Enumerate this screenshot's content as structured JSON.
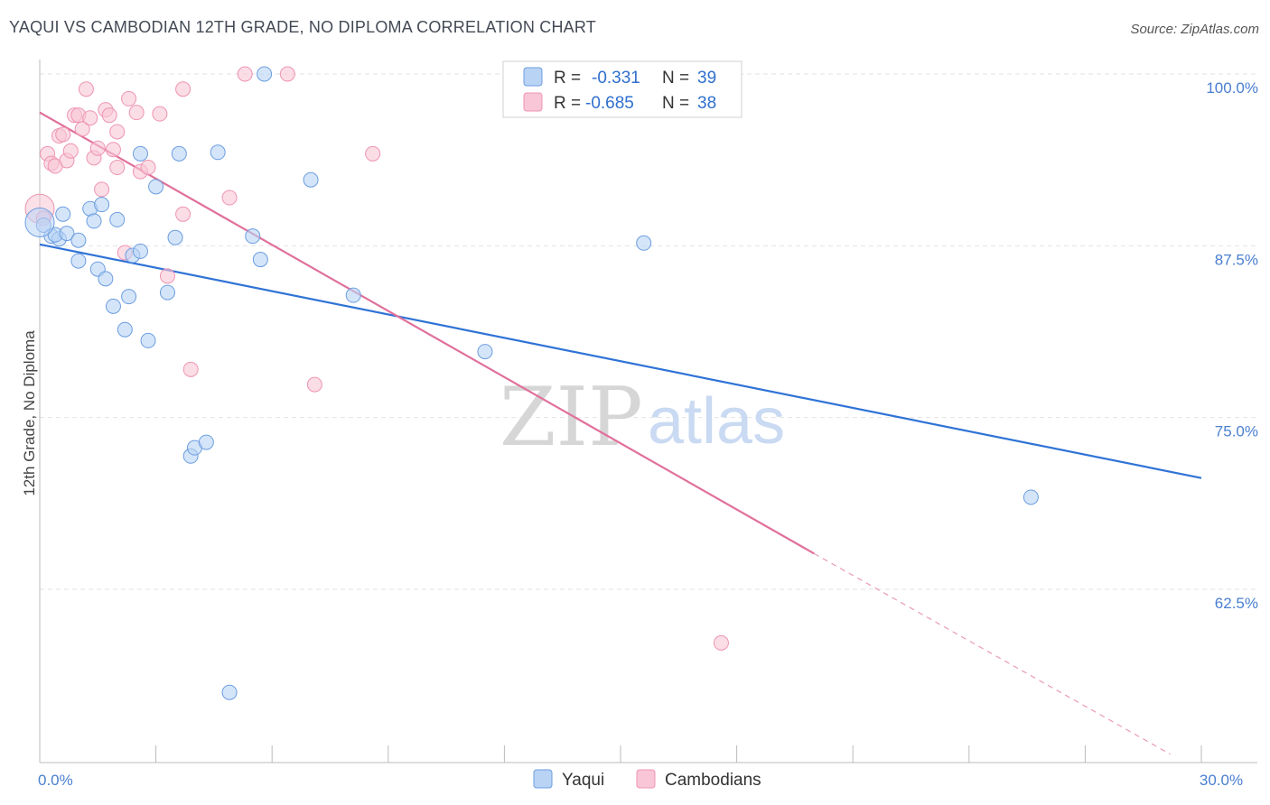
{
  "title": "YAQUI VS CAMBODIAN 12TH GRADE, NO DIPLOMA CORRELATION CHART",
  "source": "Source: ZipAtlas.com",
  "watermark": {
    "zip": "ZIP",
    "atlas": "atlas"
  },
  "colors": {
    "yaqui_fill": "#b9d3f5",
    "yaqui_stroke": "#6b9de0",
    "yaqui_line": "#2f73d6",
    "camb_fill": "#f8c6d6",
    "camb_stroke": "#ee94b2",
    "camb_line": "#e0709b",
    "grid": "#e2e2e2",
    "tick_label": "#4a7fd0"
  },
  "legend": {
    "rows": [
      {
        "r_label": "R =",
        "r_value": "-0.331",
        "n_label": "N =",
        "n_value": "39",
        "series": "yaqui"
      },
      {
        "r_label": "R =",
        "r_value": "-0.685",
        "n_label": "N =",
        "n_value": "38",
        "series": "camb"
      }
    ]
  },
  "bottom_legend": [
    "Yaqui",
    "Cambodians"
  ],
  "chart_data": {
    "type": "scatter",
    "title": "YAQUI VS CAMBODIAN 12TH GRADE, NO DIPLOMA CORRELATION CHART",
    "xlabel": "",
    "ylabel": "12th Grade, No Diploma",
    "xlim": [
      0,
      30
    ],
    "ylim": [
      50.5,
      101
    ],
    "x_tick_labels": [
      {
        "value": 0,
        "label": "0.0%"
      },
      {
        "value": 30,
        "label": "30.0%"
      }
    ],
    "x_minor_ticks": [
      0,
      3,
      6,
      9,
      12,
      15,
      18,
      21,
      24,
      27,
      30
    ],
    "y_ticks": [
      {
        "value": 100,
        "label": "100.0%"
      },
      {
        "value": 87.5,
        "label": "87.5%"
      },
      {
        "value": 75,
        "label": "75.0%"
      },
      {
        "value": 62.5,
        "label": "62.5%"
      }
    ],
    "grid": true,
    "legend_position": "top-center",
    "series": [
      {
        "name": "Yaqui",
        "key": "yaqui",
        "points": [
          [
            0.1,
            89.0
          ],
          [
            0.3,
            88.2
          ],
          [
            0.5,
            88.0
          ],
          [
            0.4,
            88.3
          ],
          [
            0.6,
            89.8
          ],
          [
            0.7,
            88.4
          ],
          [
            1.0,
            87.9
          ],
          [
            1.0,
            86.4
          ],
          [
            1.3,
            90.2
          ],
          [
            1.4,
            89.3
          ],
          [
            1.6,
            90.5
          ],
          [
            1.5,
            85.8
          ],
          [
            1.7,
            85.1
          ],
          [
            1.9,
            83.1
          ],
          [
            2.0,
            89.4
          ],
          [
            2.2,
            81.4
          ],
          [
            2.3,
            83.8
          ],
          [
            2.4,
            86.8
          ],
          [
            2.6,
            87.1
          ],
          [
            2.6,
            94.2
          ],
          [
            2.8,
            80.6
          ],
          [
            3.0,
            91.8
          ],
          [
            3.3,
            84.1
          ],
          [
            3.5,
            88.1
          ],
          [
            3.6,
            94.2
          ],
          [
            3.9,
            72.2
          ],
          [
            4.0,
            72.8
          ],
          [
            4.3,
            73.2
          ],
          [
            4.6,
            94.3
          ],
          [
            4.9,
            55.0
          ],
          [
            5.5,
            88.2
          ],
          [
            5.7,
            86.5
          ],
          [
            5.8,
            100.0
          ],
          [
            7.0,
            92.3
          ],
          [
            8.1,
            83.9
          ],
          [
            11.5,
            79.8
          ],
          [
            15.6,
            87.7
          ],
          [
            25.6,
            69.2
          ],
          [
            0.0,
            89.2
          ]
        ],
        "trend": {
          "x": [
            0,
            30
          ],
          "y": [
            87.6,
            70.6
          ]
        }
      },
      {
        "name": "Cambodians",
        "key": "camb",
        "points": [
          [
            0.0,
            90.2
          ],
          [
            0.2,
            94.2
          ],
          [
            0.3,
            93.5
          ],
          [
            0.4,
            93.3
          ],
          [
            0.5,
            95.5
          ],
          [
            0.6,
            95.6
          ],
          [
            0.7,
            93.7
          ],
          [
            0.8,
            94.4
          ],
          [
            0.9,
            97.0
          ],
          [
            1.0,
            97.0
          ],
          [
            1.1,
            96.0
          ],
          [
            1.2,
            98.9
          ],
          [
            1.3,
            96.8
          ],
          [
            1.4,
            93.9
          ],
          [
            1.5,
            94.6
          ],
          [
            1.6,
            91.6
          ],
          [
            1.7,
            97.4
          ],
          [
            1.8,
            97.0
          ],
          [
            1.9,
            94.5
          ],
          [
            2.0,
            93.2
          ],
          [
            2.0,
            95.8
          ],
          [
            2.2,
            87.0
          ],
          [
            2.3,
            98.2
          ],
          [
            2.5,
            97.2
          ],
          [
            2.6,
            92.9
          ],
          [
            2.8,
            93.2
          ],
          [
            3.1,
            97.1
          ],
          [
            3.3,
            85.3
          ],
          [
            3.7,
            89.8
          ],
          [
            3.7,
            98.9
          ],
          [
            3.9,
            78.5
          ],
          [
            4.9,
            91.0
          ],
          [
            5.3,
            100.0
          ],
          [
            6.4,
            100.0
          ],
          [
            7.1,
            77.4
          ],
          [
            8.6,
            94.2
          ],
          [
            17.6,
            58.6
          ],
          [
            0.1,
            89.5
          ]
        ],
        "trend": {
          "x": [
            0,
            20
          ],
          "y": [
            97.2,
            65.1
          ]
        },
        "trend_extension": {
          "x": [
            20,
            29.2
          ],
          "y": [
            65.1,
            50.5
          ]
        }
      }
    ]
  }
}
